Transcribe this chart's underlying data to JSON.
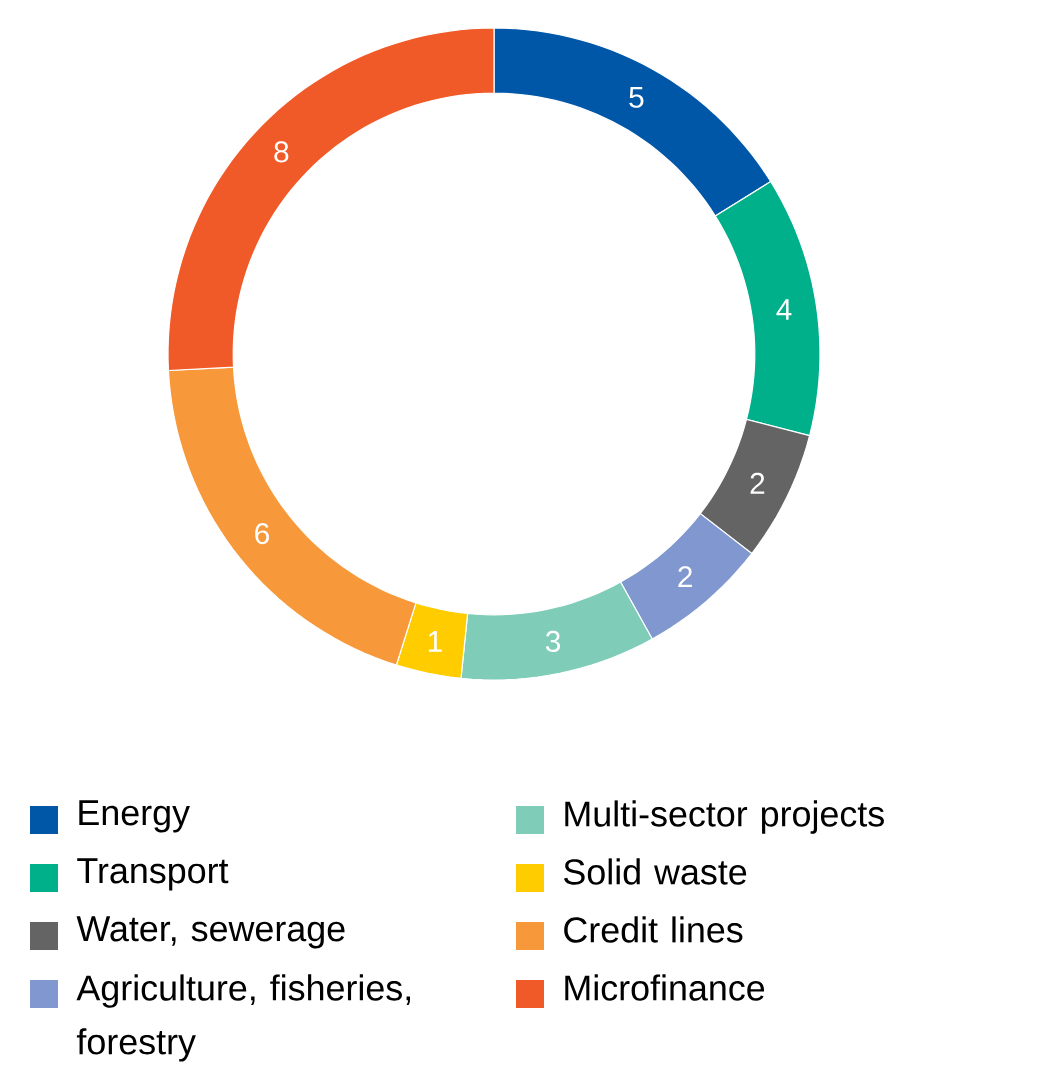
{
  "chart_data": {
    "type": "donut",
    "categories": [
      "Energy",
      "Transport",
      "Water, sewerage",
      "Agriculture, fisheries, forestry",
      "Multi-sector projects",
      "Solid waste",
      "Credit lines",
      "Microfinance"
    ],
    "values": [
      5,
      4,
      2,
      2,
      3,
      1,
      6,
      8
    ],
    "colors": [
      "#0057a8",
      "#00b08a",
      "#646464",
      "#8197cf",
      "#7fcdb8",
      "#ffcc00",
      "#f7993a",
      "#f05a28"
    ],
    "data_labels": true,
    "legend": "bottom"
  }
}
